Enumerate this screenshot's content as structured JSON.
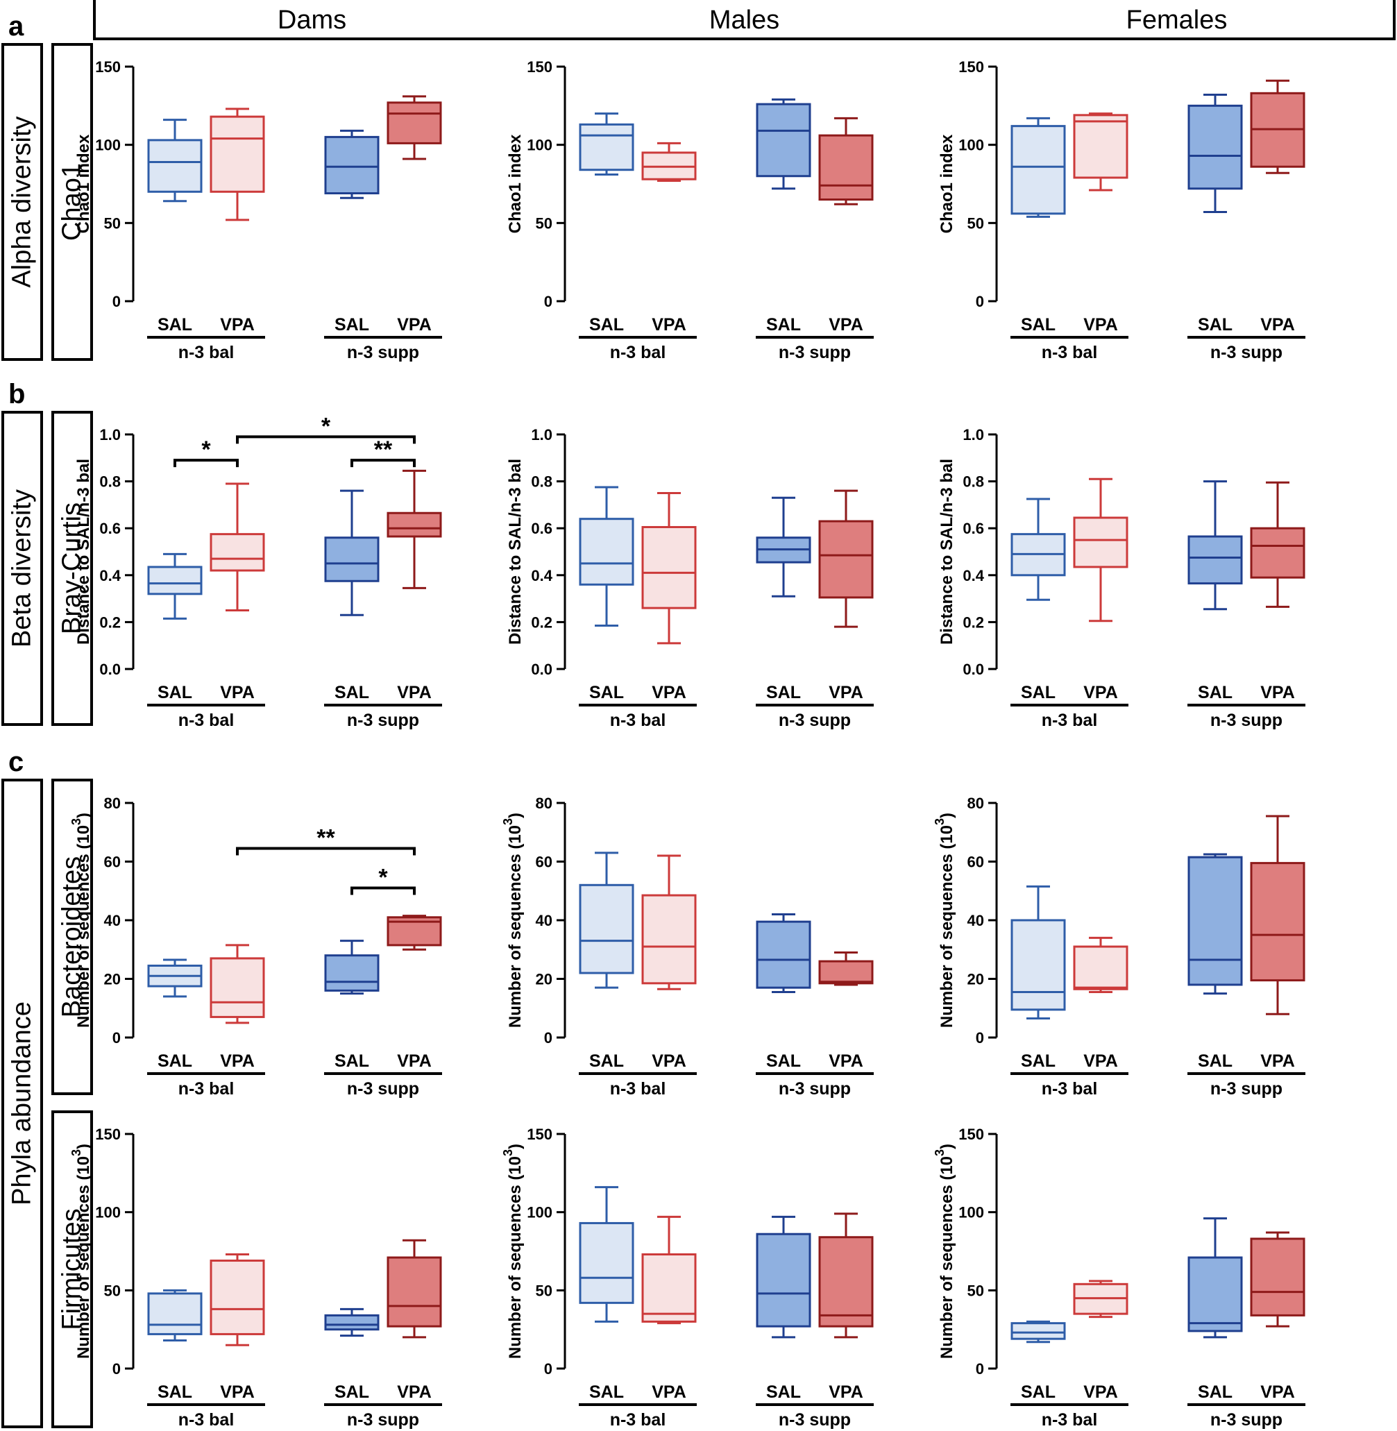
{
  "panel_letters": [
    "a",
    "b",
    "c"
  ],
  "column_headers": [
    "Dams",
    "Males",
    "Females"
  ],
  "section_labels": [
    "Alpha diversity",
    "Beta diversity",
    "Phyla abundance"
  ],
  "row_labels": [
    "Chao1",
    "Bray-Curtis",
    "Bacteroidetes",
    "Firmicutes"
  ],
  "x_tick_labels": [
    "SAL",
    "VPA",
    "SAL",
    "VPA"
  ],
  "group_labels": [
    "n-3 bal",
    "n-3 supp"
  ],
  "colors": {
    "sal_bal_fill": "#dce6f4",
    "sal_bal_stroke": "#2e5da8",
    "vpa_bal_fill": "#f8e2e2",
    "vpa_bal_stroke": "#cc3a3a",
    "sal_supp_fill": "#8fb0e0",
    "sal_supp_stroke": "#1f3f8f",
    "vpa_supp_fill": "#de7e7e",
    "vpa_supp_stroke": "#8e1a1a"
  },
  "chart_data": [
    {
      "type": "box",
      "row": "Chao1",
      "column": "Dams",
      "ylabel": "Chao1 index",
      "ylim": [
        0,
        150
      ],
      "yticks": [
        "0",
        "50",
        "100",
        "150"
      ],
      "boxes": [
        {
          "min": 64,
          "q1": 70,
          "median": 89,
          "q3": 103,
          "max": 116
        },
        {
          "min": 52,
          "q1": 70,
          "median": 104,
          "q3": 118,
          "max": 123
        },
        {
          "min": 66,
          "q1": 69,
          "median": 86,
          "q3": 105,
          "max": 109
        },
        {
          "min": 91,
          "q1": 101,
          "median": 120,
          "q3": 127,
          "max": 131
        }
      ],
      "sig": []
    },
    {
      "type": "box",
      "row": "Chao1",
      "column": "Males",
      "ylabel": "Chao1 index",
      "ylim": [
        0,
        150
      ],
      "yticks": [
        "0",
        "50",
        "100",
        "150"
      ],
      "boxes": [
        {
          "min": 81,
          "q1": 84,
          "median": 106,
          "q3": 113,
          "max": 120
        },
        {
          "min": 77,
          "q1": 78,
          "median": 86,
          "q3": 95,
          "max": 101
        },
        {
          "min": 72,
          "q1": 80,
          "median": 109,
          "q3": 126,
          "max": 129
        },
        {
          "min": 62,
          "q1": 65,
          "median": 74,
          "q3": 106,
          "max": 117
        }
      ],
      "sig": []
    },
    {
      "type": "box",
      "row": "Chao1",
      "column": "Females",
      "ylabel": "Chao1 index",
      "ylim": [
        0,
        150
      ],
      "yticks": [
        "0",
        "50",
        "100",
        "150"
      ],
      "boxes": [
        {
          "min": 54,
          "q1": 56,
          "median": 86,
          "q3": 112,
          "max": 117
        },
        {
          "min": 71,
          "q1": 79,
          "median": 115,
          "q3": 119,
          "max": 120
        },
        {
          "min": 57,
          "q1": 72,
          "median": 93,
          "q3": 125,
          "max": 132
        },
        {
          "min": 82,
          "q1": 86,
          "median": 110,
          "q3": 133,
          "max": 141
        }
      ],
      "sig": []
    },
    {
      "type": "box",
      "row": "Bray-Curtis",
      "column": "Dams",
      "ylabel": "Distance to SAL/n-3 bal",
      "ylim": [
        0,
        1
      ],
      "yticks": [
        "0.0",
        "0.2",
        "0.4",
        "0.6",
        "0.8",
        "1.0"
      ],
      "boxes": [
        {
          "min": 0.215,
          "q1": 0.32,
          "median": 0.365,
          "q3": 0.435,
          "max": 0.49
        },
        {
          "min": 0.25,
          "q1": 0.42,
          "median": 0.47,
          "q3": 0.575,
          "max": 0.79
        },
        {
          "min": 0.23,
          "q1": 0.375,
          "median": 0.45,
          "q3": 0.56,
          "max": 0.76
        },
        {
          "min": 0.345,
          "q1": 0.565,
          "median": 0.6,
          "q3": 0.665,
          "max": 0.845
        }
      ],
      "sig": [
        {
          "from": 0,
          "to": 1,
          "value": 0.89,
          "label": "*"
        },
        {
          "from": 2,
          "to": 3,
          "value": 0.89,
          "label": "**"
        },
        {
          "from": 1,
          "to": 3,
          "value": 0.99,
          "label": "*"
        }
      ]
    },
    {
      "type": "box",
      "row": "Bray-Curtis",
      "column": "Males",
      "ylabel": "Distance to SAL/n-3 bal",
      "ylim": [
        0,
        1
      ],
      "yticks": [
        "0.0",
        "0.2",
        "0.4",
        "0.6",
        "0.8",
        "1.0"
      ],
      "boxes": [
        {
          "min": 0.185,
          "q1": 0.36,
          "median": 0.45,
          "q3": 0.64,
          "max": 0.775
        },
        {
          "min": 0.11,
          "q1": 0.26,
          "median": 0.41,
          "q3": 0.605,
          "max": 0.75
        },
        {
          "min": 0.31,
          "q1": 0.455,
          "median": 0.51,
          "q3": 0.56,
          "max": 0.73
        },
        {
          "min": 0.18,
          "q1": 0.305,
          "median": 0.485,
          "q3": 0.63,
          "max": 0.76
        }
      ],
      "sig": []
    },
    {
      "type": "box",
      "row": "Bray-Curtis",
      "column": "Females",
      "ylabel": "Distance to SAL/n-3 bal",
      "ylim": [
        0,
        1
      ],
      "yticks": [
        "0.0",
        "0.2",
        "0.4",
        "0.6",
        "0.8",
        "1.0"
      ],
      "boxes": [
        {
          "min": 0.295,
          "q1": 0.4,
          "median": 0.49,
          "q3": 0.575,
          "max": 0.725
        },
        {
          "min": 0.205,
          "q1": 0.435,
          "median": 0.55,
          "q3": 0.645,
          "max": 0.81
        },
        {
          "min": 0.255,
          "q1": 0.365,
          "median": 0.475,
          "q3": 0.565,
          "max": 0.8
        },
        {
          "min": 0.265,
          "q1": 0.39,
          "median": 0.525,
          "q3": 0.6,
          "max": 0.795
        }
      ],
      "sig": []
    },
    {
      "type": "box",
      "row": "Bacteroidetes",
      "column": "Dams",
      "ylabel": "Number of sequences (10",
      "ylabel_exp": "3",
      "ylabel_close": ")",
      "ylim": [
        0,
        80
      ],
      "yticks": [
        "0",
        "20",
        "40",
        "60",
        "80"
      ],
      "boxes": [
        {
          "min": 14,
          "q1": 17.5,
          "median": 21,
          "q3": 24.5,
          "max": 26.5
        },
        {
          "min": 5,
          "q1": 7,
          "median": 12,
          "q3": 27,
          "max": 31.5
        },
        {
          "min": 15,
          "q1": 16,
          "median": 19,
          "q3": 28,
          "max": 33
        },
        {
          "min": 30,
          "q1": 31.5,
          "median": 39.5,
          "q3": 41,
          "max": 41.5
        }
      ],
      "sig": [
        {
          "from": 2,
          "to": 3,
          "value": 51,
          "label": "*"
        },
        {
          "from": 1,
          "to": 3,
          "value": 64.5,
          "label": "**"
        }
      ]
    },
    {
      "type": "box",
      "row": "Bacteroidetes",
      "column": "Males",
      "ylabel": "Number of sequences (10",
      "ylabel_exp": "3",
      "ylabel_close": ")",
      "ylim": [
        0,
        80
      ],
      "yticks": [
        "0",
        "20",
        "40",
        "60",
        "80"
      ],
      "boxes": [
        {
          "min": 17,
          "q1": 22,
          "median": 33,
          "q3": 52,
          "max": 63
        },
        {
          "min": 16.5,
          "q1": 18.5,
          "median": 31,
          "q3": 48.5,
          "max": 62
        },
        {
          "min": 15.5,
          "q1": 17,
          "median": 26.5,
          "q3": 39.5,
          "max": 42
        },
        {
          "min": 18,
          "q1": 18.5,
          "median": 19,
          "q3": 26,
          "max": 29
        }
      ],
      "sig": []
    },
    {
      "type": "box",
      "row": "Bacteroidetes",
      "column": "Females",
      "ylabel": "Number of sequences (10",
      "ylabel_exp": "3",
      "ylabel_close": ")",
      "ylim": [
        0,
        80
      ],
      "yticks": [
        "0",
        "20",
        "40",
        "60",
        "80"
      ],
      "boxes": [
        {
          "min": 6.5,
          "q1": 9.5,
          "median": 15.5,
          "q3": 40,
          "max": 51.5
        },
        {
          "min": 15.5,
          "q1": 16.5,
          "median": 17,
          "q3": 31,
          "max": 34
        },
        {
          "min": 15,
          "q1": 18,
          "median": 26.5,
          "q3": 61.5,
          "max": 62.5
        },
        {
          "min": 8,
          "q1": 19.5,
          "median": 35,
          "q3": 59.5,
          "max": 75.5
        }
      ],
      "sig": []
    },
    {
      "type": "box",
      "row": "Firmicutes",
      "column": "Dams",
      "ylabel": "Number of sequences (10",
      "ylabel_exp": "3",
      "ylabel_close": ")",
      "ylim": [
        0,
        150
      ],
      "yticks": [
        "0",
        "50",
        "100",
        "150"
      ],
      "boxes": [
        {
          "min": 18,
          "q1": 22,
          "median": 28,
          "q3": 48,
          "max": 50
        },
        {
          "min": 15,
          "q1": 22,
          "median": 38,
          "q3": 69,
          "max": 73
        },
        {
          "min": 21,
          "q1": 25,
          "median": 28,
          "q3": 34,
          "max": 38
        },
        {
          "min": 20,
          "q1": 27,
          "median": 40,
          "q3": 71,
          "max": 82
        }
      ],
      "sig": []
    },
    {
      "type": "box",
      "row": "Firmicutes",
      "column": "Males",
      "ylabel": "Number of sequences (10",
      "ylabel_exp": "3",
      "ylabel_close": ")",
      "ylim": [
        0,
        150
      ],
      "yticks": [
        "0",
        "50",
        "100",
        "150"
      ],
      "boxes": [
        {
          "min": 30,
          "q1": 42,
          "median": 58,
          "q3": 93,
          "max": 116
        },
        {
          "min": 29,
          "q1": 30,
          "median": 35,
          "q3": 73,
          "max": 97
        },
        {
          "min": 20,
          "q1": 27,
          "median": 48,
          "q3": 86,
          "max": 97
        },
        {
          "min": 20,
          "q1": 27,
          "median": 34,
          "q3": 84,
          "max": 99
        }
      ],
      "sig": []
    },
    {
      "type": "box",
      "row": "Firmicutes",
      "column": "Females",
      "ylabel": "Number of sequences (10",
      "ylabel_exp": "3",
      "ylabel_close": ")",
      "ylim": [
        0,
        150
      ],
      "yticks": [
        "0",
        "50",
        "100",
        "150"
      ],
      "boxes": [
        {
          "min": 17,
          "q1": 19,
          "median": 23,
          "q3": 29,
          "max": 30
        },
        {
          "min": 33,
          "q1": 35,
          "median": 45,
          "q3": 54,
          "max": 56
        },
        {
          "min": 20,
          "q1": 24,
          "median": 29,
          "q3": 71,
          "max": 96
        },
        {
          "min": 27,
          "q1": 34,
          "median": 49,
          "q3": 83,
          "max": 87
        }
      ],
      "sig": []
    }
  ]
}
